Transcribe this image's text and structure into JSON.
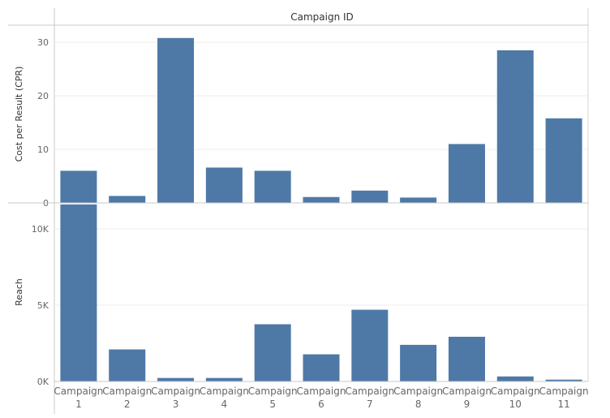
{
  "header": {
    "title": "Campaign ID"
  },
  "chart_data": {
    "type": "bar",
    "categories": [
      [
        "Campaign",
        "1"
      ],
      [
        "Campaign",
        "2"
      ],
      [
        "Campaign",
        "3"
      ],
      [
        "Campaign",
        "4"
      ],
      [
        "Campaign",
        "5"
      ],
      [
        "Campaign",
        "6"
      ],
      [
        "Campaign",
        "7"
      ],
      [
        "Campaign",
        "8"
      ],
      [
        "Campaign",
        "9"
      ],
      [
        "Campaign",
        "10"
      ],
      [
        "Campaign",
        "11"
      ]
    ],
    "panels": [
      {
        "ylabel": "Cost per Result (CPR)",
        "ylim": [
          0,
          33.2
        ],
        "ticks": [
          0,
          10,
          20,
          30
        ],
        "tick_labels": [
          "0",
          "10",
          "20",
          "30"
        ],
        "values": [
          6.0,
          1.3,
          30.8,
          6.6,
          6.0,
          1.1,
          2.3,
          1.0,
          11.0,
          28.5,
          15.8
        ]
      },
      {
        "ylabel": "Reach",
        "ylim": [
          0,
          11700
        ],
        "ticks": [
          0,
          5000,
          10000
        ],
        "tick_labels": [
          "0K",
          "5K",
          "10K"
        ],
        "values": [
          11600,
          2100,
          230,
          230,
          3750,
          1780,
          4700,
          2400,
          2930,
          330,
          120
        ]
      }
    ],
    "bar_color": "#4e79a7",
    "grid": true,
    "legend": "none"
  }
}
